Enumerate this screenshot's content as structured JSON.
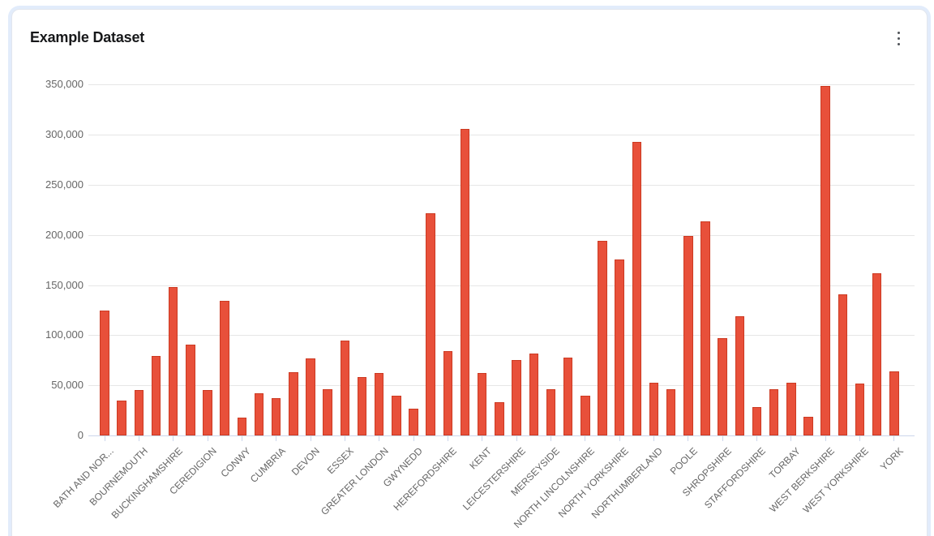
{
  "card": {
    "title": "Example Dataset",
    "menu_icon": "kebab-menu-icon"
  },
  "colors": {
    "bar_fill": "#E8503A",
    "bar_border": "#CC3A22",
    "grid_line": "#E6E6E6",
    "axis_line": "#CCD6EB",
    "axis_label": "#666666",
    "title_text": "#17181A",
    "card_glow": "#E2ECFB"
  },
  "chart_data": {
    "type": "bar",
    "title": "Example Dataset",
    "xlabel": "",
    "ylabel": "",
    "ylim": [
      0,
      350000
    ],
    "ytick_step": 50000,
    "ytick_labels": [
      "0",
      "50,000",
      "100,000",
      "150,000",
      "200,000",
      "250,000",
      "300,000",
      "350,000"
    ],
    "grid": true,
    "legend": false,
    "x_labels_shown_every": 2,
    "categories": [
      "BATH AND NOR...",
      "",
      "BOURNEMOUTH",
      "",
      "BUCKINGHAMSHIRE",
      "",
      "CEREDIGION",
      "",
      "CONWY",
      "",
      "CUMBRIA",
      "",
      "DEVON",
      "",
      "ESSEX",
      "",
      "GREATER LONDON",
      "",
      "GWYNEDD",
      "",
      "HEREFORDSHIRE",
      "",
      "KENT",
      "",
      "LEICESTERSHIRE",
      "",
      "MERSEYSIDE",
      "",
      "NORTH LINCOLNSHIRE",
      "",
      "NORTH YORKSHIRE",
      "",
      "NORTHUMBERLAND",
      "",
      "POOLE",
      "",
      "SHROPSHIRE",
      "",
      "STAFFORDSHIRE",
      "",
      "TORBAY",
      "",
      "WEST BERKSHIRE",
      "",
      "WEST YORKSHIRE",
      "",
      "YORK"
    ],
    "values": [
      125000,
      35000,
      45000,
      79000,
      148000,
      91000,
      45000,
      134000,
      18000,
      42000,
      37000,
      63000,
      77000,
      46000,
      95000,
      58000,
      62000,
      40000,
      27000,
      222000,
      84000,
      306000,
      62000,
      33000,
      75000,
      82000,
      46000,
      78000,
      40000,
      194000,
      176000,
      293000,
      53000,
      46000,
      199000,
      214000,
      97000,
      119000,
      28000,
      46000,
      53000,
      19000,
      349000,
      141000,
      52000,
      162000,
      64000
    ]
  }
}
